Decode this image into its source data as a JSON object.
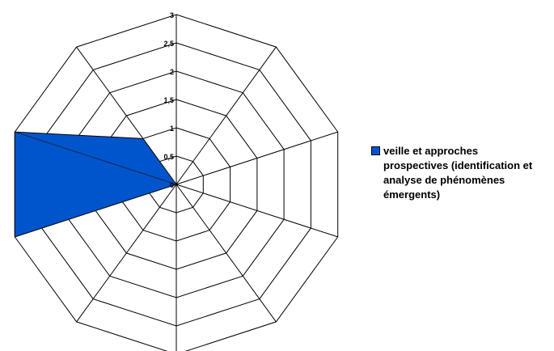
{
  "chart_data": {
    "type": "radar",
    "axes_count": 10,
    "rlim": [
      0,
      3
    ],
    "ticks": [
      "0",
      "0,5",
      "1",
      "1,5",
      "2",
      "2,5",
      "3"
    ],
    "tick_values": [
      0,
      0.5,
      1,
      1.5,
      2,
      2.5,
      3
    ],
    "grid": true,
    "legend_position": "right",
    "series": [
      {
        "name": "veille et approches prospectives (identification et analyse de phénomènes émergents)",
        "color": "#0055cc",
        "values": [
          0,
          0,
          0,
          0,
          0,
          0,
          0,
          3,
          3,
          1
        ]
      }
    ]
  }
}
